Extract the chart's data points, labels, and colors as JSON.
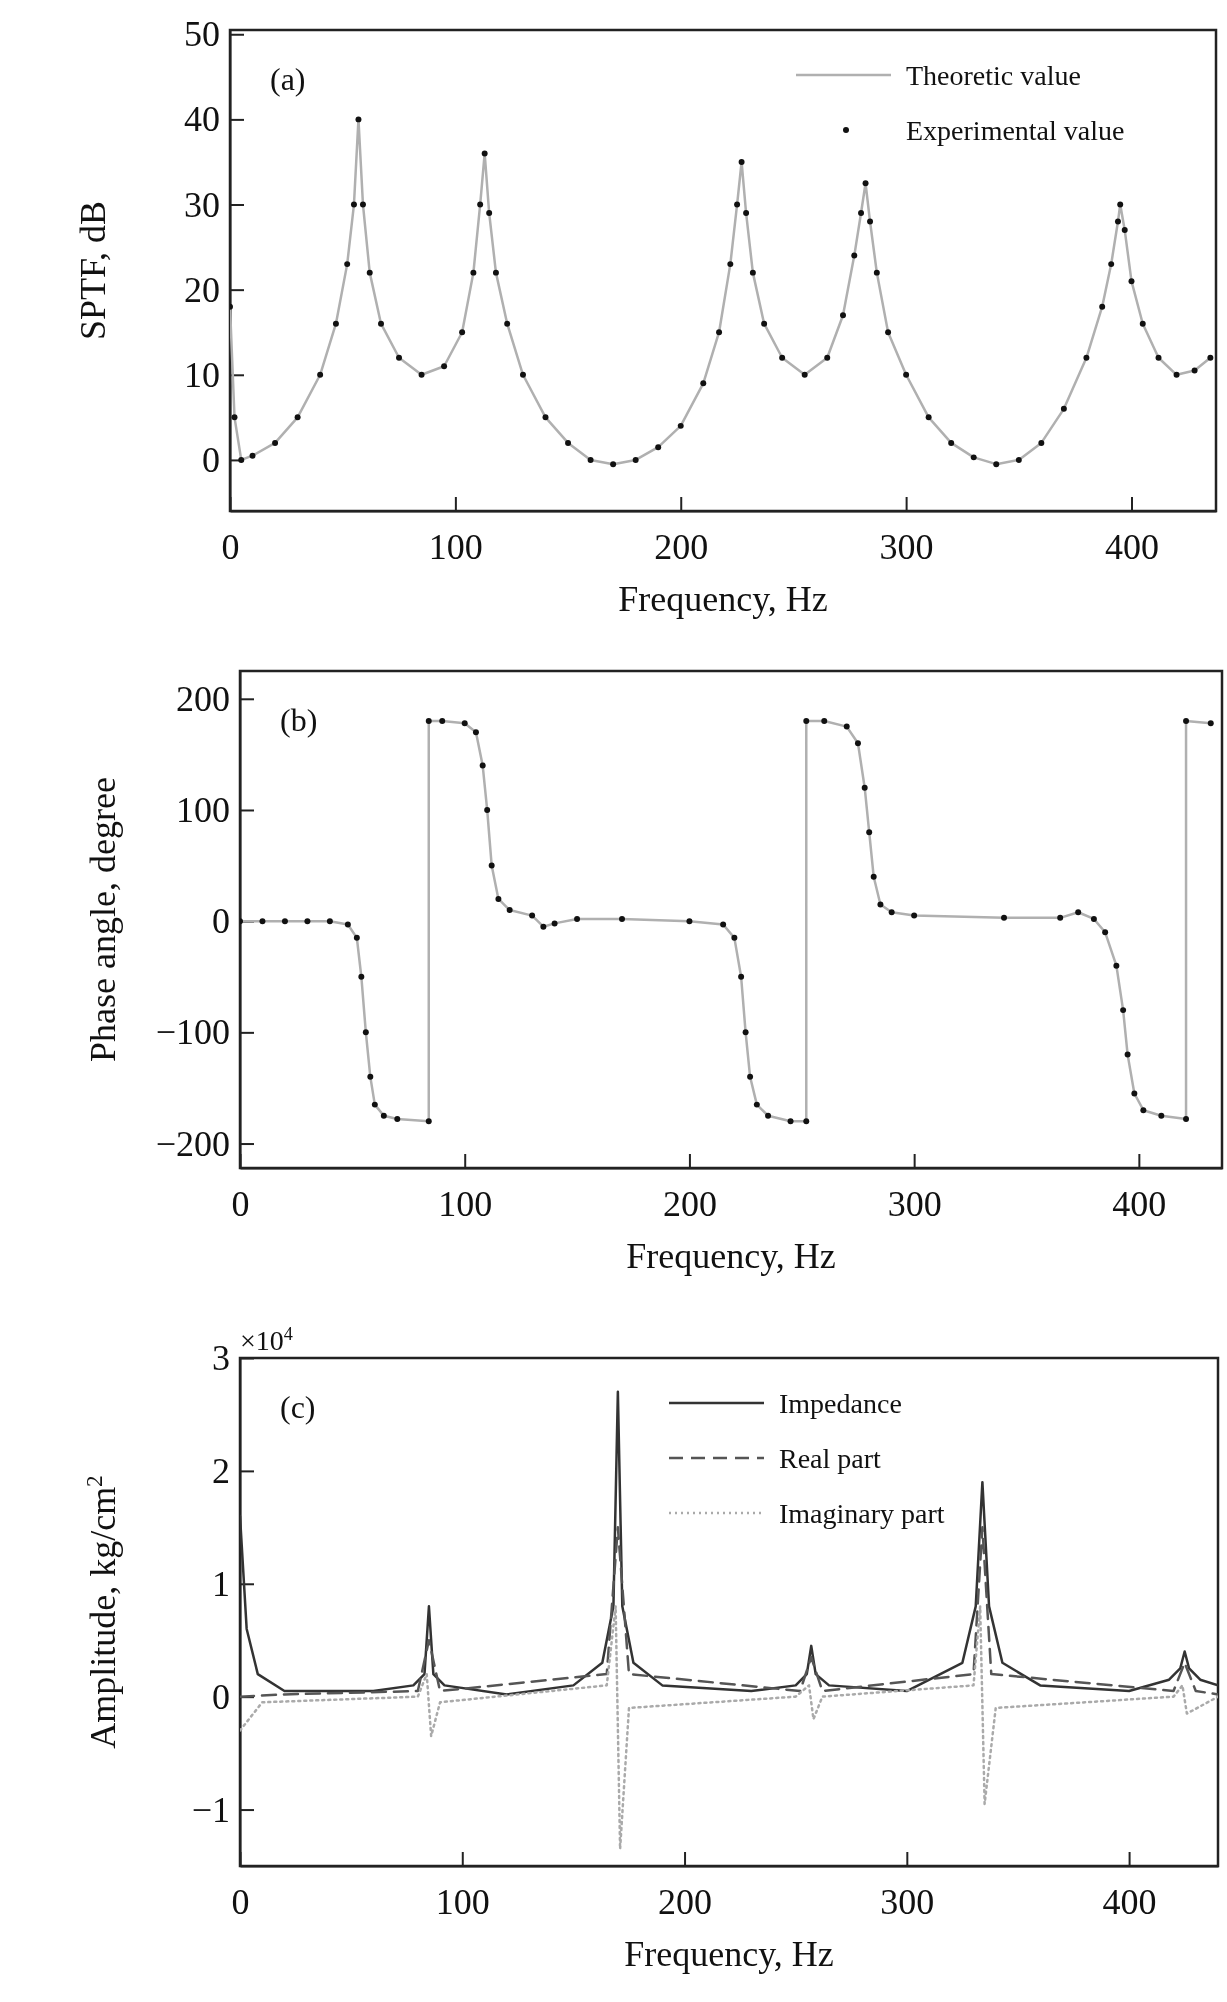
{
  "chart_data": [
    {
      "type": "line",
      "xlabel": "Frequency, Hz",
      "ylabel": "SPTF, dB",
      "annotations": [
        "(a)"
      ],
      "xlim": [
        0,
        437.5
      ],
      "ylim": [
        -6,
        50.5
      ],
      "xticks": [
        0,
        100,
        200,
        300,
        400
      ],
      "yticks": [
        0,
        10,
        20,
        30,
        40,
        50
      ],
      "legend": "top right",
      "grid": false,
      "x": [
        0,
        2,
        5,
        10,
        20,
        30,
        40,
        47,
        52,
        55,
        57,
        59,
        62,
        67,
        75,
        85,
        95,
        103,
        108,
        111,
        113,
        115,
        118,
        123,
        130,
        140,
        150,
        160,
        170,
        180,
        190,
        200,
        210,
        217,
        222,
        225,
        227,
        229,
        232,
        237,
        245,
        255,
        265,
        272,
        277,
        280,
        282,
        284,
        287,
        292,
        300,
        310,
        320,
        330,
        340,
        350,
        360,
        370,
        380,
        387,
        391,
        394,
        395,
        397,
        400,
        405,
        412,
        420,
        428,
        435
      ],
      "series": [
        {
          "name": "Theoretic value",
          "color": "#b0b0b0",
          "line_style": "solid",
          "values": [
            18,
            5,
            0,
            0.5,
            2,
            5,
            10,
            16,
            23,
            30,
            40,
            30,
            22,
            16,
            12,
            10,
            11,
            15,
            22,
            30,
            36,
            29,
            22,
            16,
            10,
            5,
            2,
            0,
            -0.5,
            0,
            1.5,
            4,
            9,
            15,
            23,
            30,
            35,
            29,
            22,
            16,
            12,
            10,
            12,
            17,
            24,
            29,
            32.5,
            28,
            22,
            15,
            10,
            5,
            2,
            0.3,
            -0.5,
            0,
            2,
            6,
            12,
            18,
            23,
            28,
            30,
            27,
            21,
            16,
            12,
            10,
            10.5,
            12
          ]
        },
        {
          "name": "Experimental value",
          "type": "scatter",
          "color": "#111111",
          "marker": "circle",
          "values": [
            18,
            5,
            0,
            0.5,
            2,
            5,
            10,
            16,
            23,
            30,
            40,
            30,
            22,
            16,
            12,
            10,
            11,
            15,
            22,
            30,
            36,
            29,
            22,
            16,
            10,
            5,
            2,
            0,
            -0.5,
            0,
            1.5,
            4,
            9,
            15,
            23,
            30,
            35,
            29,
            22,
            16,
            12,
            10,
            12,
            17,
            24,
            29,
            32.5,
            28,
            22,
            15,
            10,
            5,
            2,
            0.3,
            -0.5,
            0,
            2,
            6,
            12,
            18,
            23,
            28,
            30,
            27,
            21,
            16,
            12,
            10,
            10.5,
            12
          ]
        }
      ]
    },
    {
      "type": "line",
      "xlabel": "Frequency, Hz",
      "ylabel": "Phase angle, degree",
      "annotations": [
        "(b)"
      ],
      "xlim": [
        0,
        437
      ],
      "ylim": [
        -222,
        225
      ],
      "xticks": [
        0,
        100,
        200,
        300,
        400
      ],
      "yticks": [
        200,
        100,
        0,
        -100,
        -200
      ],
      "legend": false,
      "grid": false,
      "x": [
        0,
        10,
        20,
        30,
        40,
        48,
        52,
        54,
        56,
        58,
        60,
        64,
        70,
        84,
        84,
        90,
        100,
        105,
        108,
        110,
        112,
        115,
        120,
        130,
        135,
        140,
        150,
        170,
        200,
        215,
        220,
        223,
        225,
        227,
        230,
        235,
        245,
        252,
        252,
        260,
        270,
        275,
        278,
        280,
        282,
        285,
        290,
        300,
        340,
        365,
        373,
        380,
        385,
        390,
        393,
        395,
        398,
        402,
        410,
        421,
        421,
        432
      ],
      "series": [
        {
          "color": "#b0b0b0",
          "line_style": "solid",
          "values": [
            0,
            0,
            0,
            0,
            0,
            -3,
            -15,
            -50,
            -100,
            -140,
            -165,
            -175,
            -178,
            -180,
            180,
            180,
            178,
            170,
            140,
            100,
            50,
            20,
            10,
            5,
            -5,
            -2,
            2,
            2,
            0,
            -3,
            -15,
            -50,
            -100,
            -140,
            -165,
            -175,
            -180,
            -180,
            180,
            180,
            175,
            160,
            120,
            80,
            40,
            15,
            8,
            5,
            3,
            3,
            8,
            2,
            -10,
            -40,
            -80,
            -120,
            -155,
            -170,
            -175,
            -178,
            180,
            178
          ]
        },
        {
          "type": "scatter",
          "color": "#111111",
          "marker": "circle",
          "values": [
            0,
            0,
            0,
            0,
            0,
            -3,
            -15,
            -50,
            -100,
            -140,
            -165,
            -175,
            -178,
            -180,
            180,
            180,
            178,
            170,
            140,
            100,
            50,
            20,
            10,
            5,
            -5,
            -2,
            2,
            2,
            0,
            -3,
            -15,
            -50,
            -100,
            -140,
            -165,
            -175,
            -180,
            -180,
            180,
            180,
            175,
            160,
            120,
            80,
            40,
            15,
            8,
            5,
            3,
            3,
            8,
            2,
            -10,
            -40,
            -80,
            -120,
            -155,
            -170,
            -175,
            -178,
            180,
            178
          ]
        }
      ]
    },
    {
      "type": "line",
      "xlabel": "Frequency, Hz",
      "ylabel": "Amplitude, kg/cm$^{2}$",
      "annotations": [
        "(c)",
        "×10$^{4}$"
      ],
      "xlim": [
        0,
        440
      ],
      "ylim": [
        -1.5,
        3
      ],
      "xticks": [
        0,
        100,
        200,
        300,
        400
      ],
      "yticks": [
        3,
        2,
        1,
        0,
        -1
      ],
      "legend": "top",
      "grid": false,
      "series": [
        {
          "name": "Impedance",
          "color": "#333333",
          "line_style": "solid",
          "x": [
            0,
            3,
            8,
            20,
            60,
            78,
            83,
            85,
            87,
            92,
            120,
            150,
            163,
            168,
            170,
            172,
            177,
            190,
            230,
            250,
            255,
            257,
            259,
            265,
            300,
            325,
            331,
            334,
            337,
            343,
            360,
            400,
            418,
            423,
            425,
            427,
            432,
            440
          ],
          "values": [
            1.6,
            0.6,
            0.2,
            0.05,
            0.05,
            0.1,
            0.2,
            0.8,
            0.2,
            0.1,
            0.02,
            0.1,
            0.3,
            0.8,
            2.7,
            0.8,
            0.3,
            0.1,
            0.05,
            0.1,
            0.2,
            0.45,
            0.2,
            0.1,
            0.05,
            0.3,
            0.8,
            1.9,
            0.8,
            0.3,
            0.1,
            0.05,
            0.15,
            0.25,
            0.4,
            0.25,
            0.15,
            0.1
          ]
        },
        {
          "name": "Real part",
          "color": "#555555",
          "line_style": "dashed",
          "x": [
            0,
            20,
            80,
            85,
            90,
            165,
            170,
            175,
            252,
            257,
            262,
            330,
            334,
            338,
            420,
            425,
            430,
            440
          ],
          "values": [
            0,
            0.02,
            0.05,
            0.5,
            0.05,
            0.2,
            1.5,
            0.2,
            0.05,
            0.35,
            0.05,
            0.2,
            1.5,
            0.2,
            0.05,
            0.3,
            0.05,
            0.02
          ]
        },
        {
          "name": "Imaginary part",
          "color": "#aaaaaa",
          "line_style": "dotted",
          "x": [
            0,
            10,
            80,
            84,
            86,
            90,
            165,
            169,
            171,
            175,
            250,
            256,
            258,
            262,
            330,
            333,
            335,
            340,
            420,
            424,
            426,
            440
          ],
          "values": [
            -0.3,
            -0.05,
            0,
            0.2,
            -0.35,
            -0.05,
            0.1,
            0.8,
            -1.35,
            -0.1,
            0,
            0.1,
            -0.2,
            0,
            0.1,
            0.8,
            -0.95,
            -0.1,
            0,
            0.1,
            -0.15,
            0
          ]
        }
      ]
    }
  ]
}
